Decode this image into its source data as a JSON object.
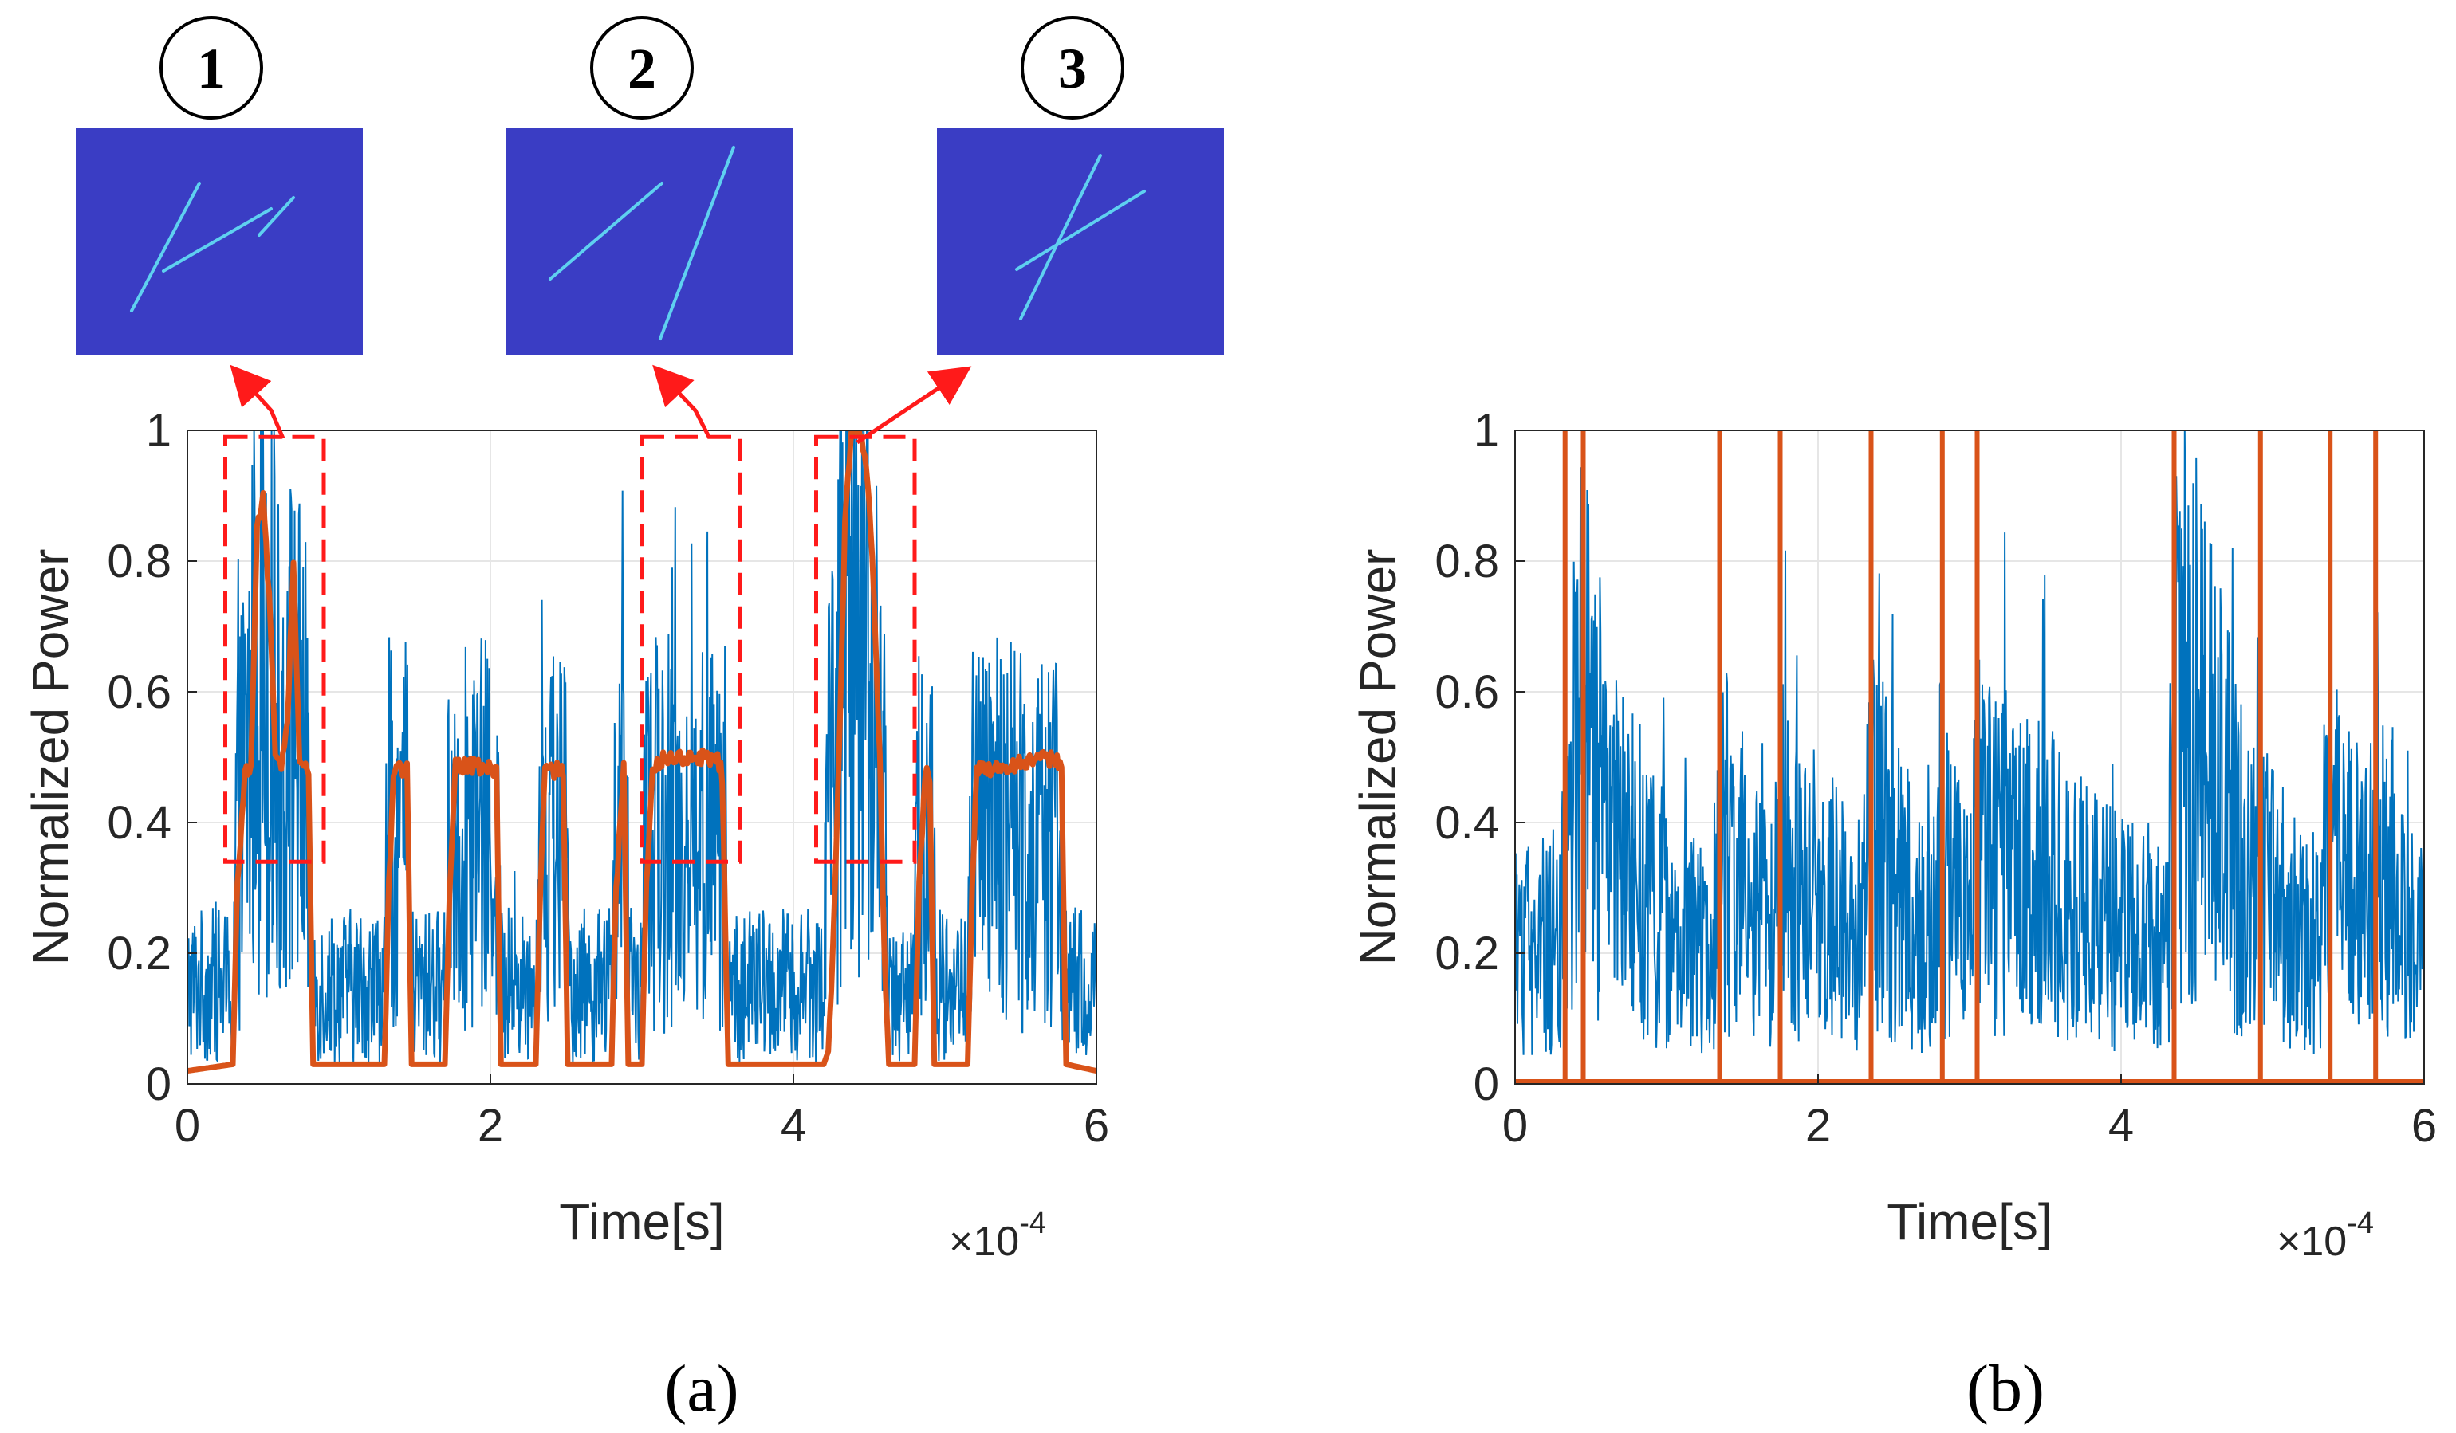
{
  "colors": {
    "raw_signal": "#0072BD",
    "envelope": "#D95319",
    "highlight": "#FF1A1A",
    "inset_background": "#3A3DC4",
    "inset_streak": "#5FD0F0"
  },
  "chart_data": [
    {
      "panel_label": "(a)",
      "type": "line",
      "xlabel": "Time[s]",
      "ylabel": "Normalized Power",
      "x_exponent": "×10",
      "x_exponent_power": "-4",
      "xlim": [
        0,
        6
      ],
      "ylim": [
        0,
        1
      ],
      "xticks": [
        "0",
        "2",
        "4",
        "6"
      ],
      "yticks": [
        "0",
        "0.2",
        "0.4",
        "0.6",
        "0.8",
        "1"
      ],
      "grid": true,
      "series": [
        {
          "kind": "noisy",
          "color": "#0072BD",
          "x": [
            0,
            0.3,
            0.32,
            0.45,
            0.5,
            0.6,
            0.7,
            0.8,
            0.82,
            1.3,
            1.32,
            1.45,
            1.47,
            1.7,
            1.72,
            2.05,
            2.07,
            2.3,
            2.32,
            2.5,
            2.52,
            2.8,
            2.82,
            2.9,
            2.92,
            3.0,
            3.02,
            3.55,
            3.57,
            4.2,
            4.22,
            4.35,
            4.4,
            4.5,
            4.6,
            4.62,
            4.8,
            4.82,
            4.92,
            4.94,
            5.15,
            5.17,
            5.75,
            5.78,
            6.0
          ],
          "y": [
            0.15,
            0.15,
            0.35,
            0.6,
            0.7,
            0.5,
            0.55,
            0.45,
            0.15,
            0.15,
            0.38,
            0.38,
            0.15,
            0.15,
            0.38,
            0.38,
            0.15,
            0.15,
            0.38,
            0.38,
            0.15,
            0.15,
            0.38,
            0.38,
            0.15,
            0.15,
            0.38,
            0.38,
            0.15,
            0.15,
            0.45,
            0.7,
            0.8,
            0.6,
            0.42,
            0.15,
            0.15,
            0.38,
            0.38,
            0.15,
            0.15,
            0.38,
            0.38,
            0.15,
            0.15
          ]
        },
        {
          "kind": "envelope",
          "color": "#D95319",
          "x": [
            0,
            0.3,
            0.33,
            0.38,
            0.42,
            0.46,
            0.5,
            0.55,
            0.58,
            0.62,
            0.66,
            0.7,
            0.74,
            0.78,
            0.8,
            0.83,
            1.3,
            1.33,
            1.36,
            1.45,
            1.48,
            1.7,
            1.73,
            1.77,
            2.04,
            2.07,
            2.3,
            2.33,
            2.36,
            2.48,
            2.51,
            2.8,
            2.83,
            2.88,
            2.91,
            3.0,
            3.03,
            3.07,
            3.2,
            3.5,
            3.53,
            3.57,
            4.2,
            4.23,
            4.26,
            4.3,
            4.34,
            4.38,
            4.42,
            4.46,
            4.5,
            4.54,
            4.57,
            4.6,
            4.63,
            4.8,
            4.83,
            4.87,
            4.9,
            4.93,
            5.15,
            5.18,
            5.21,
            5.74,
            5.77,
            5.8,
            6.0
          ],
          "y": [
            0.02,
            0.03,
            0.3,
            0.48,
            0.48,
            0.85,
            0.9,
            0.7,
            0.5,
            0.48,
            0.55,
            0.8,
            0.5,
            0.48,
            0.47,
            0.03,
            0.03,
            0.3,
            0.48,
            0.48,
            0.03,
            0.03,
            0.3,
            0.49,
            0.48,
            0.03,
            0.03,
            0.3,
            0.48,
            0.48,
            0.03,
            0.03,
            0.3,
            0.48,
            0.03,
            0.03,
            0.3,
            0.49,
            0.5,
            0.5,
            0.47,
            0.03,
            0.03,
            0.05,
            0.2,
            0.5,
            0.85,
            1.0,
            1.0,
            0.98,
            0.9,
            0.7,
            0.5,
            0.2,
            0.03,
            0.03,
            0.3,
            0.48,
            0.47,
            0.03,
            0.03,
            0.3,
            0.48,
            0.5,
            0.48,
            0.03,
            0.02
          ]
        }
      ],
      "insets": [
        {
          "label": "1"
        },
        {
          "label": "2"
        },
        {
          "label": "3"
        }
      ],
      "highlight_regions": [
        {
          "x0": 0.25,
          "x1": 0.9,
          "y0": 0.34,
          "y1": 0.99
        },
        {
          "x0": 3.0,
          "x1": 3.65,
          "y0": 0.34,
          "y1": 0.99
        },
        {
          "x0": 4.15,
          "x1": 4.8,
          "y0": 0.34,
          "y1": 0.99
        }
      ]
    },
    {
      "panel_label": "(b)",
      "type": "line",
      "xlabel": "Time[s]",
      "ylabel": "Normalized Power",
      "x_exponent": "×10",
      "x_exponent_power": "-4",
      "xlim": [
        0,
        6
      ],
      "ylim": [
        0,
        1
      ],
      "xticks": [
        "0",
        "2",
        "4",
        "6"
      ],
      "yticks": [
        "0",
        "0.2",
        "0.4",
        "0.6",
        "0.8",
        "1"
      ],
      "grid": true,
      "series": [
        {
          "kind": "noisy",
          "color": "#0072BD",
          "x": [
            0,
            0.3,
            0.35,
            0.45,
            0.55,
            0.8,
            1.3,
            1.35,
            1.5,
            1.7,
            1.75,
            1.9,
            2.3,
            2.35,
            2.5,
            2.75,
            2.8,
            3.0,
            3.05,
            3.3,
            3.8,
            4.3,
            4.35,
            4.5,
            4.8,
            4.9,
            5.1,
            5.3,
            5.35,
            5.6,
            5.65,
            5.85,
            6.0
          ],
          "y": [
            0.2,
            0.22,
            0.45,
            0.55,
            0.45,
            0.28,
            0.2,
            0.4,
            0.3,
            0.22,
            0.4,
            0.3,
            0.22,
            0.4,
            0.3,
            0.2,
            0.35,
            0.22,
            0.38,
            0.35,
            0.25,
            0.2,
            0.5,
            0.55,
            0.32,
            0.3,
            0.25,
            0.22,
            0.35,
            0.3,
            0.35,
            0.3,
            0.2
          ]
        }
      ],
      "pulses": {
        "color": "#D95319",
        "baseline": 0,
        "height": 1,
        "x": [
          0.33,
          0.45,
          1.35,
          1.75,
          2.35,
          2.82,
          3.05,
          4.35,
          4.92,
          5.38,
          5.68
        ]
      }
    }
  ]
}
